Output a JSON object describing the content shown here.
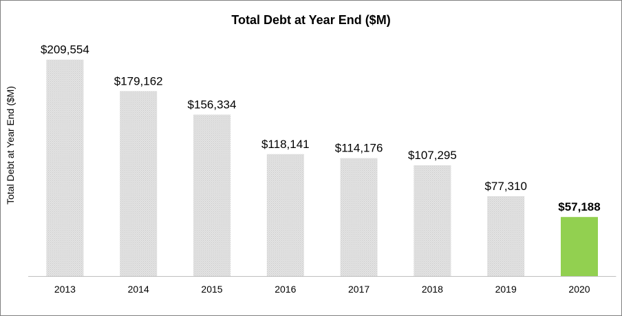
{
  "chart_data": {
    "type": "bar",
    "title": "Total Debt at Year End ($M)",
    "ylabel": "Total  Debt at Year End ($M)",
    "xlabel": "",
    "categories": [
      "2013",
      "2014",
      "2015",
      "2016",
      "2017",
      "2018",
      "2019",
      "2020"
    ],
    "values": [
      209554,
      179162,
      156334,
      118141,
      114176,
      107295,
      77310,
      57188
    ],
    "data_labels": [
      "$209,554",
      "$179,162",
      "$156,334",
      "$118,141",
      "$114,176",
      "$107,295",
      "$77,310",
      "$57,188"
    ],
    "ylim": [
      0,
      220000
    ],
    "grid": false,
    "legend": "none",
    "highlight_index": 7,
    "colors": {
      "bar": "#d9d9d9",
      "highlight": "#92d050",
      "axis": "#bfbfbf"
    }
  }
}
